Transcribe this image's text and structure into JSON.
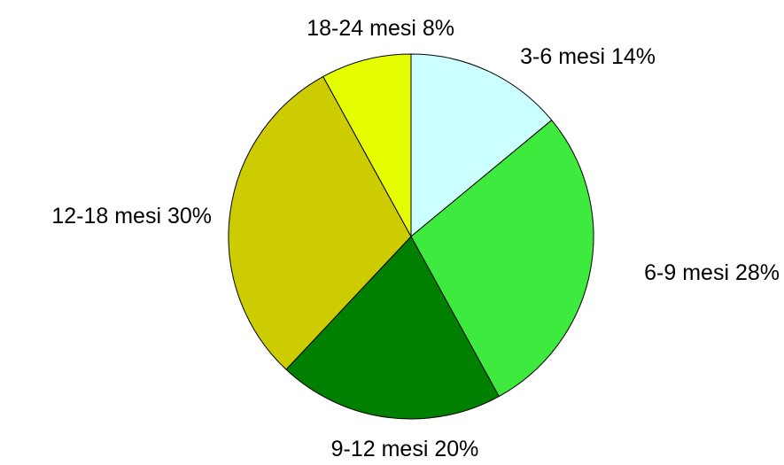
{
  "chart_data": {
    "type": "pie",
    "title": "",
    "slices": [
      {
        "label": "3-6 mesi 14%",
        "value": 14,
        "color": "#ccffff"
      },
      {
        "label": "6-9 mesi 28%",
        "value": 28,
        "color": "#3eea3e"
      },
      {
        "label": "9-12 mesi 20%",
        "value": 20,
        "color": "#008000"
      },
      {
        "label": "12-18 mesi 30%",
        "value": 30,
        "color": "#cccc00"
      },
      {
        "label": "18-24 mesi 8%",
        "value": 8,
        "color": "#e6ff00"
      }
    ],
    "start_angle_deg": 0,
    "direction": "clockwise",
    "legend": "none",
    "labels": "outside"
  }
}
